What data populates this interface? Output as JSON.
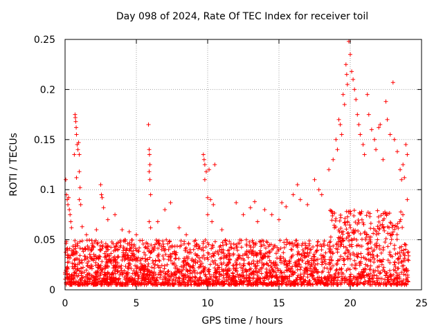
{
  "chart_data": {
    "type": "scatter",
    "title": "Day 098 of 2024, Rate Of TEC Index for receiver toil",
    "xlabel": "GPS time / hours",
    "ylabel": "ROTI / TECUs",
    "xlim": [
      0,
      25
    ],
    "ylim": [
      0,
      0.25
    ],
    "grid": true,
    "marker": "+",
    "color": "#ff0000",
    "x_ticks": [
      0,
      5,
      10,
      15,
      20,
      25
    ],
    "x_tick_labels": [
      "0",
      "5",
      "10",
      "15",
      "20",
      "25"
    ],
    "y_ticks": [
      0,
      0.05,
      0.1,
      0.15,
      0.2,
      0.25
    ],
    "y_tick_labels": [
      "0",
      "0.05",
      "0.1",
      "0.15",
      "0.2",
      "0.25"
    ],
    "series": [
      {
        "name": "ROTI",
        "points": [
          [
            0.05,
            0.11
          ],
          [
            0.1,
            0.095
          ],
          [
            0.15,
            0.09
          ],
          [
            0.2,
            0.085
          ],
          [
            0.25,
            0.092
          ],
          [
            0.3,
            0.08
          ],
          [
            0.35,
            0.075
          ],
          [
            0.4,
            0.068
          ],
          [
            0.45,
            0.062
          ],
          [
            0.7,
            0.175
          ],
          [
            0.72,
            0.172
          ],
          [
            0.75,
            0.168
          ],
          [
            0.78,
            0.162
          ],
          [
            0.8,
            0.155
          ],
          [
            0.85,
            0.145
          ],
          [
            0.65,
            0.135
          ],
          [
            0.9,
            0.14
          ],
          [
            0.95,
            0.147
          ],
          [
            1.0,
            0.135
          ],
          [
            0.8,
            0.112
          ],
          [
            1.0,
            0.118
          ],
          [
            1.05,
            0.102
          ],
          [
            1.0,
            0.09
          ],
          [
            1.1,
            0.085
          ],
          [
            1.2,
            0.063
          ],
          [
            1.5,
            0.055
          ],
          [
            2.2,
            0.06
          ],
          [
            2.5,
            0.105
          ],
          [
            2.55,
            0.095
          ],
          [
            2.6,
            0.092
          ],
          [
            2.7,
            0.082
          ],
          [
            3.0,
            0.07
          ],
          [
            3.5,
            0.075
          ],
          [
            4.0,
            0.06
          ],
          [
            4.5,
            0.058
          ],
          [
            5.0,
            0.055
          ],
          [
            5.85,
            0.165
          ],
          [
            5.9,
            0.14
          ],
          [
            5.92,
            0.135
          ],
          [
            5.95,
            0.125
          ],
          [
            5.9,
            0.118
          ],
          [
            5.95,
            0.11
          ],
          [
            6.0,
            0.095
          ],
          [
            5.9,
            0.068
          ],
          [
            6.0,
            0.062
          ],
          [
            6.5,
            0.068
          ],
          [
            7.0,
            0.08
          ],
          [
            7.4,
            0.087
          ],
          [
            8.0,
            0.062
          ],
          [
            8.5,
            0.055
          ],
          [
            9.7,
            0.135
          ],
          [
            9.75,
            0.13
          ],
          [
            9.8,
            0.125
          ],
          [
            9.9,
            0.118
          ],
          [
            10.1,
            0.12
          ],
          [
            10.5,
            0.125
          ],
          [
            9.8,
            0.11
          ],
          [
            10.0,
            0.092
          ],
          [
            10.2,
            0.09
          ],
          [
            10.4,
            0.085
          ],
          [
            10.0,
            0.075
          ],
          [
            10.3,
            0.068
          ],
          [
            11.0,
            0.06
          ],
          [
            12.0,
            0.087
          ],
          [
            12.5,
            0.075
          ],
          [
            13.0,
            0.082
          ],
          [
            13.3,
            0.088
          ],
          [
            13.5,
            0.068
          ],
          [
            14.0,
            0.08
          ],
          [
            14.5,
            0.075
          ],
          [
            15.0,
            0.07
          ],
          [
            15.2,
            0.087
          ],
          [
            15.5,
            0.083
          ],
          [
            16.0,
            0.095
          ],
          [
            16.3,
            0.105
          ],
          [
            16.5,
            0.09
          ],
          [
            17.0,
            0.085
          ],
          [
            17.5,
            0.11
          ],
          [
            17.8,
            0.1
          ],
          [
            18.0,
            0.095
          ],
          [
            18.5,
            0.12
          ],
          [
            18.8,
            0.13
          ],
          [
            19.0,
            0.15
          ],
          [
            19.1,
            0.14
          ],
          [
            19.2,
            0.17
          ],
          [
            19.3,
            0.165
          ],
          [
            19.4,
            0.155
          ],
          [
            19.5,
            0.195
          ],
          [
            19.6,
            0.185
          ],
          [
            19.7,
            0.225
          ],
          [
            19.75,
            0.215
          ],
          [
            19.8,
            0.205
          ],
          [
            19.9,
            0.248
          ],
          [
            20.0,
            0.235
          ],
          [
            20.1,
            0.218
          ],
          [
            20.2,
            0.21
          ],
          [
            20.3,
            0.2
          ],
          [
            20.4,
            0.19
          ],
          [
            20.5,
            0.175
          ],
          [
            20.6,
            0.165
          ],
          [
            20.7,
            0.155
          ],
          [
            20.9,
            0.145
          ],
          [
            21.0,
            0.135
          ],
          [
            21.2,
            0.195
          ],
          [
            21.3,
            0.175
          ],
          [
            21.5,
            0.16
          ],
          [
            21.7,
            0.15
          ],
          [
            21.8,
            0.14
          ],
          [
            22.0,
            0.162
          ],
          [
            22.1,
            0.165
          ],
          [
            22.3,
            0.13
          ],
          [
            22.5,
            0.188
          ],
          [
            22.6,
            0.17
          ],
          [
            22.8,
            0.155
          ],
          [
            23.0,
            0.207
          ],
          [
            23.1,
            0.15
          ],
          [
            23.3,
            0.138
          ],
          [
            23.5,
            0.12
          ],
          [
            23.6,
            0.11
          ],
          [
            23.7,
            0.125
          ],
          [
            23.8,
            0.112
          ],
          [
            23.9,
            0.145
          ],
          [
            24.0,
            0.135
          ],
          [
            24.0,
            0.09
          ]
        ]
      }
    ]
  }
}
